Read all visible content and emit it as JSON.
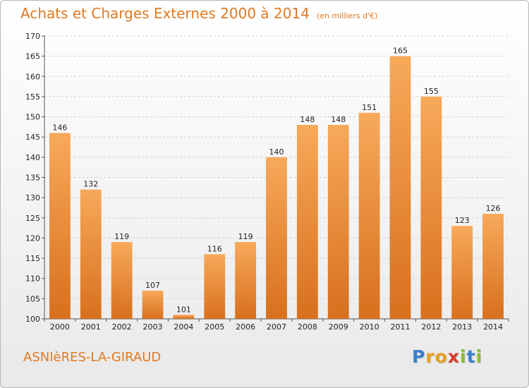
{
  "chart_data": {
    "type": "bar",
    "title": "Achats et Charges Externes 2000 à 2014",
    "subtitle": "(en milliers d'€)",
    "categories": [
      "2000",
      "2001",
      "2002",
      "2003",
      "2004",
      "2005",
      "2006",
      "2007",
      "2008",
      "2009",
      "2010",
      "2011",
      "2012",
      "2013",
      "2014"
    ],
    "values": [
      146,
      132,
      119,
      107,
      101,
      116,
      119,
      140,
      148,
      148,
      151,
      165,
      155,
      123,
      126
    ],
    "ylim": [
      100,
      170
    ],
    "yticks": [
      100,
      105,
      110,
      115,
      120,
      125,
      130,
      135,
      140,
      145,
      150,
      155,
      160,
      165,
      170
    ],
    "grid": "horizontal",
    "legend": "none",
    "colors": {
      "bar_light": "#f7a95a",
      "bar_dark": "#d8701d",
      "title": "#e07a22"
    }
  },
  "footer": {
    "place": "ASNIèRES-LA-GIRAUD",
    "logo_letters": [
      {
        "char": "P",
        "color": "#3a7fd0"
      },
      {
        "char": "r",
        "color": "#e8a020"
      },
      {
        "char": "o",
        "color": "#e8a020"
      },
      {
        "char": "x",
        "color": "#d93a2a"
      },
      {
        "char": "i",
        "color": "#8cbf26"
      },
      {
        "char": "t",
        "color": "#3a7fd0"
      },
      {
        "char": "i",
        "color": "#8cbf26"
      }
    ]
  }
}
